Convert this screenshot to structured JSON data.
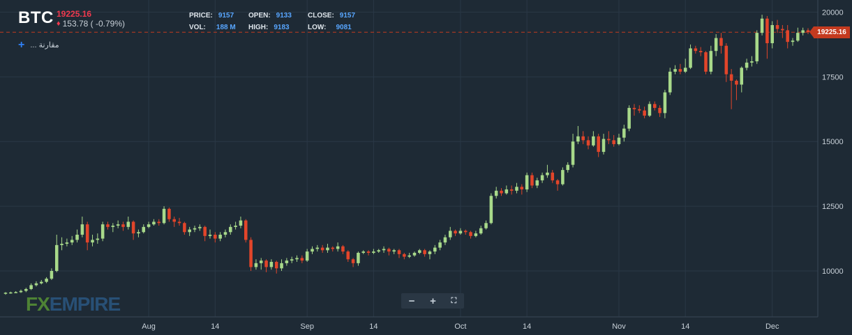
{
  "header": {
    "symbol": "BTC",
    "last_price": "19225.16",
    "change": "153.78 ( -0.79%)",
    "compare_label": "... مقارنة"
  },
  "ohlc": {
    "price_label": "PRICE:",
    "price": "9157",
    "open_label": "OPEN:",
    "open": "9133",
    "close_label": "CLOSE:",
    "close": "9157",
    "vol_label": "VOL:",
    "vol": "188 M",
    "high_label": "HIGH:",
    "high": "9183",
    "low_label": "LOW:",
    "low": "9081"
  },
  "price_tag": "19225.16",
  "watermark": {
    "fx": "FX",
    "rest": "EMPIRE"
  },
  "zoom": {
    "minus": "−",
    "plus": "+",
    "fit": "⛶"
  },
  "colors": {
    "up": "#a8d98a",
    "down": "#e2452a",
    "grid": "#2a3846",
    "axis_text": "#c9d1d9",
    "last_line": "#c43a1f"
  },
  "chart_data": {
    "type": "candlestick",
    "title": "",
    "ylabel": "",
    "xlabel": "",
    "ylim": [
      8200,
      20200
    ],
    "yticks": [
      10000,
      12500,
      15000,
      17500,
      20000
    ],
    "ytick_labels": [
      "10000",
      "12500",
      "15000",
      "17500",
      "20000"
    ],
    "xticks": [
      {
        "label": "Aug",
        "day": 28
      },
      {
        "label": "14",
        "day": 41
      },
      {
        "label": "Sep",
        "day": 59
      },
      {
        "label": "14",
        "day": 72
      },
      {
        "label": "Oct",
        "day": 89
      },
      {
        "label": "14",
        "day": 102
      },
      {
        "label": "Nov",
        "day": 120
      },
      {
        "label": "14",
        "day": 133
      },
      {
        "label": "Dec",
        "day": 150
      }
    ],
    "last_price": 19225.16,
    "candles": [
      [
        0,
        9133,
        9157,
        9183,
        9081
      ],
      [
        1,
        9157,
        9170,
        9200,
        9120
      ],
      [
        2,
        9170,
        9180,
        9220,
        9140
      ],
      [
        3,
        9180,
        9230,
        9280,
        9150
      ],
      [
        4,
        9230,
        9300,
        9350,
        9180
      ],
      [
        5,
        9300,
        9450,
        9520,
        9260
      ],
      [
        6,
        9450,
        9520,
        9600,
        9400
      ],
      [
        7,
        9520,
        9580,
        9650,
        9480
      ],
      [
        8,
        9580,
        9700,
        9760,
        9530
      ],
      [
        9,
        9700,
        10000,
        10100,
        9650
      ],
      [
        10,
        10000,
        11000,
        11400,
        9950
      ],
      [
        11,
        11000,
        11050,
        11300,
        10800
      ],
      [
        12,
        11050,
        11100,
        11250,
        10950
      ],
      [
        13,
        11100,
        11200,
        11350,
        11000
      ],
      [
        14,
        11200,
        11400,
        11600,
        11100
      ],
      [
        15,
        11400,
        11800,
        12100,
        11300
      ],
      [
        16,
        11800,
        11100,
        11900,
        10800
      ],
      [
        17,
        11100,
        11200,
        11400,
        10950
      ],
      [
        18,
        11200,
        11250,
        11450,
        11050
      ],
      [
        19,
        11250,
        11800,
        11900,
        11150
      ],
      [
        20,
        11800,
        11700,
        11900,
        11600
      ],
      [
        21,
        11700,
        11750,
        11850,
        11500
      ],
      [
        22,
        11750,
        11800,
        11950,
        11650
      ],
      [
        23,
        11800,
        11700,
        11900,
        11550
      ],
      [
        24,
        11700,
        11900,
        12100,
        11600
      ],
      [
        25,
        11900,
        11450,
        11950,
        11200
      ],
      [
        26,
        11450,
        11500,
        11600,
        11300
      ],
      [
        27,
        11500,
        11700,
        11800,
        11450
      ],
      [
        28,
        11700,
        11800,
        11900,
        11650
      ],
      [
        29,
        11800,
        11900,
        12000,
        11750
      ],
      [
        30,
        11900,
        11850,
        12000,
        11750
      ],
      [
        31,
        11850,
        12400,
        12500,
        11800
      ],
      [
        32,
        12400,
        12000,
        12450,
        11900
      ],
      [
        33,
        12000,
        11900,
        12100,
        11700
      ],
      [
        34,
        11900,
        11850,
        12050,
        11750
      ],
      [
        35,
        11850,
        11500,
        11900,
        11400
      ],
      [
        36,
        11500,
        11600,
        11700,
        11350
      ],
      [
        37,
        11600,
        11650,
        11750,
        11500
      ],
      [
        38,
        11650,
        11700,
        11800,
        11550
      ],
      [
        39,
        11700,
        11350,
        11750,
        11150
      ],
      [
        40,
        11350,
        11400,
        11600,
        11250
      ],
      [
        41,
        11400,
        11250,
        11500,
        11100
      ],
      [
        42,
        11250,
        11400,
        11500,
        11150
      ],
      [
        43,
        11400,
        11500,
        11600,
        11300
      ],
      [
        44,
        11500,
        11700,
        11800,
        11400
      ],
      [
        45,
        11700,
        11750,
        11900,
        11600
      ],
      [
        46,
        11750,
        11950,
        12100,
        11650
      ],
      [
        47,
        11950,
        11200,
        12000,
        11100
      ],
      [
        48,
        11200,
        10150,
        11300,
        10000
      ],
      [
        49,
        10150,
        10300,
        10450,
        10050
      ],
      [
        50,
        10300,
        10400,
        10500,
        10050
      ],
      [
        51,
        10400,
        10150,
        10450,
        9950
      ],
      [
        52,
        10150,
        10350,
        10450,
        10050
      ],
      [
        53,
        10350,
        10100,
        10400,
        9900
      ],
      [
        54,
        10100,
        10300,
        10450,
        10000
      ],
      [
        55,
        10300,
        10400,
        10500,
        10200
      ],
      [
        56,
        10400,
        10450,
        10550,
        10300
      ],
      [
        57,
        10450,
        10500,
        10600,
        10350
      ],
      [
        58,
        10500,
        10400,
        10600,
        10300
      ],
      [
        59,
        10400,
        10750,
        10850,
        10350
      ],
      [
        60,
        10750,
        10850,
        10950,
        10650
      ],
      [
        61,
        10850,
        10900,
        11000,
        10750
      ],
      [
        62,
        10900,
        10800,
        11000,
        10700
      ],
      [
        63,
        10800,
        10900,
        11050,
        10700
      ],
      [
        64,
        10900,
        10850,
        10950,
        10750
      ],
      [
        65,
        10850,
        10950,
        11100,
        10750
      ],
      [
        66,
        10950,
        10750,
        11000,
        10650
      ],
      [
        67,
        10750,
        10450,
        10800,
        10350
      ],
      [
        68,
        10450,
        10300,
        10500,
        10150
      ],
      [
        69,
        10300,
        10700,
        10750,
        10200
      ],
      [
        70,
        10700,
        10750,
        10800,
        10650
      ],
      [
        71,
        10750,
        10700,
        10800,
        10600
      ],
      [
        72,
        10700,
        10750,
        10850,
        10650
      ],
      [
        73,
        10750,
        10800,
        10850,
        10700
      ],
      [
        74,
        10800,
        10850,
        10950,
        10700
      ],
      [
        75,
        10850,
        10750,
        10900,
        10600
      ],
      [
        76,
        10750,
        10800,
        10850,
        10650
      ],
      [
        77,
        10800,
        10650,
        10850,
        10500
      ],
      [
        78,
        10650,
        10550,
        10700,
        10450
      ],
      [
        79,
        10550,
        10600,
        10700,
        10500
      ],
      [
        80,
        10600,
        10700,
        10750,
        10550
      ],
      [
        81,
        10700,
        10800,
        10850,
        10650
      ],
      [
        82,
        10800,
        10650,
        10850,
        10550
      ],
      [
        83,
        10650,
        10750,
        10800,
        10450
      ],
      [
        84,
        10750,
        10900,
        11000,
        10650
      ],
      [
        85,
        10900,
        11100,
        11200,
        10800
      ],
      [
        86,
        11100,
        11300,
        11400,
        11000
      ],
      [
        87,
        11300,
        11550,
        11700,
        11200
      ],
      [
        88,
        11550,
        11450,
        11600,
        11350
      ],
      [
        89,
        11450,
        11550,
        11650,
        11400
      ],
      [
        90,
        11550,
        11500,
        11600,
        11400
      ],
      [
        91,
        11500,
        11350,
        11550,
        11250
      ],
      [
        92,
        11350,
        11450,
        11550,
        11300
      ],
      [
        93,
        11450,
        11650,
        11750,
        11400
      ],
      [
        94,
        11650,
        11850,
        11950,
        11600
      ],
      [
        95,
        11850,
        12900,
        13000,
        11800
      ],
      [
        96,
        12900,
        13100,
        13250,
        12800
      ],
      [
        97,
        13100,
        13000,
        13200,
        12900
      ],
      [
        98,
        13000,
        13150,
        13300,
        12950
      ],
      [
        99,
        13150,
        13100,
        13300,
        12950
      ],
      [
        100,
        13100,
        13250,
        13400,
        13000
      ],
      [
        101,
        13250,
        13150,
        13350,
        12950
      ],
      [
        102,
        13150,
        13700,
        13800,
        13050
      ],
      [
        103,
        13700,
        13300,
        13800,
        13200
      ],
      [
        104,
        13300,
        13500,
        13600,
        13200
      ],
      [
        105,
        13500,
        13700,
        13800,
        13400
      ],
      [
        106,
        13700,
        13800,
        14100,
        13600
      ],
      [
        107,
        13800,
        13500,
        13900,
        13400
      ],
      [
        108,
        13500,
        13350,
        13550,
        13100
      ],
      [
        109,
        13350,
        13900,
        14000,
        13300
      ],
      [
        110,
        13900,
        14100,
        14200,
        13800
      ],
      [
        111,
        14100,
        15000,
        15300,
        14000
      ],
      [
        112,
        15000,
        15200,
        15600,
        14900
      ],
      [
        113,
        15200,
        15050,
        15400,
        14900
      ],
      [
        114,
        15050,
        14850,
        15200,
        14700
      ],
      [
        115,
        14850,
        15200,
        15400,
        14800
      ],
      [
        116,
        15200,
        14600,
        15300,
        14400
      ],
      [
        117,
        14600,
        15100,
        15300,
        14500
      ],
      [
        118,
        15100,
        15050,
        15400,
        14900
      ],
      [
        119,
        15050,
        14900,
        15250,
        14800
      ],
      [
        120,
        14900,
        15150,
        15300,
        14850
      ],
      [
        121,
        15150,
        15500,
        15650,
        15000
      ],
      [
        122,
        15500,
        16300,
        16400,
        15400
      ],
      [
        123,
        16300,
        16250,
        16450,
        16000
      ],
      [
        124,
        16250,
        16200,
        16400,
        16100
      ],
      [
        125,
        16200,
        16000,
        16350,
        15900
      ],
      [
        126,
        16000,
        16450,
        16550,
        15950
      ],
      [
        127,
        16450,
        16300,
        16550,
        16200
      ],
      [
        128,
        16300,
        16100,
        16400,
        15950
      ],
      [
        129,
        16100,
        16900,
        17000,
        15900
      ],
      [
        130,
        16900,
        17700,
        17850,
        16800
      ],
      [
        131,
        17700,
        17800,
        17950,
        17600
      ],
      [
        132,
        17800,
        17700,
        18000,
        17600
      ],
      [
        133,
        17700,
        17850,
        18200,
        17650
      ],
      [
        134,
        17850,
        18600,
        18750,
        17800
      ],
      [
        135,
        18600,
        18500,
        18700,
        18400
      ],
      [
        136,
        18500,
        18450,
        18650,
        18300
      ],
      [
        137,
        18450,
        17700,
        18500,
        17600
      ],
      [
        138,
        17700,
        18500,
        18700,
        17600
      ],
      [
        139,
        18500,
        19000,
        19150,
        18300
      ],
      [
        140,
        19000,
        18700,
        19200,
        18400
      ],
      [
        141,
        18700,
        17600,
        18800,
        17300
      ],
      [
        142,
        17600,
        17350,
        17800,
        16250
      ],
      [
        143,
        17350,
        17200,
        17400,
        16600
      ],
      [
        144,
        17200,
        17850,
        17900,
        16900
      ],
      [
        145,
        17850,
        18050,
        18200,
        17750
      ],
      [
        146,
        18050,
        18100,
        18300,
        17900
      ],
      [
        147,
        18100,
        19200,
        19300,
        18000
      ],
      [
        148,
        19200,
        19750,
        19900,
        19100
      ],
      [
        149,
        19750,
        18800,
        19850,
        18200
      ],
      [
        150,
        18800,
        19500,
        19650,
        18600
      ],
      [
        151,
        19500,
        19350,
        19700,
        19200
      ],
      [
        152,
        19350,
        19300,
        19500,
        19000
      ],
      [
        153,
        19300,
        18850,
        19500,
        18600
      ],
      [
        154,
        18850,
        18900,
        19000,
        18700
      ],
      [
        155,
        18900,
        19200,
        19400,
        18850
      ],
      [
        156,
        19200,
        19300,
        19400,
        19100
      ],
      [
        157,
        19300,
        19225,
        19380,
        19150
      ]
    ]
  }
}
